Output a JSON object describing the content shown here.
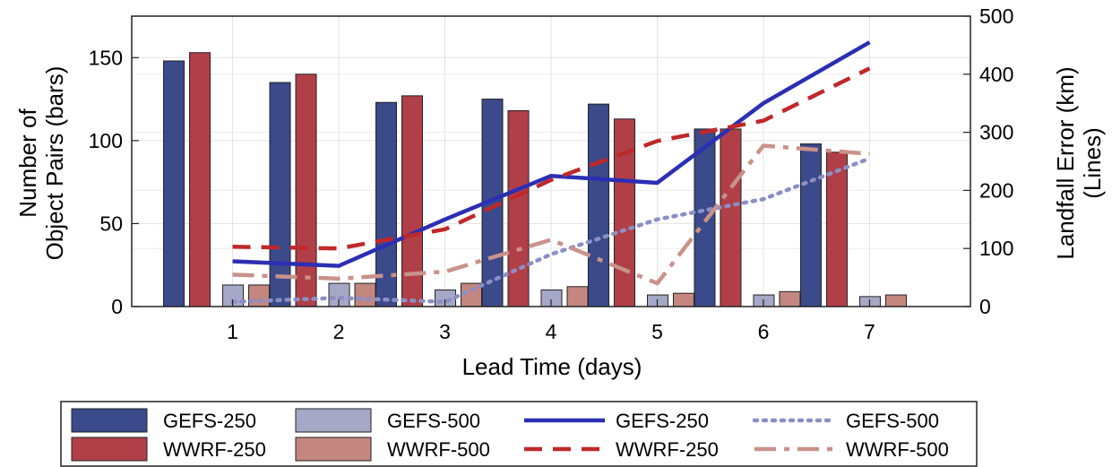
{
  "chart_data": {
    "type": "bar",
    "x": [
      1,
      2,
      3,
      4,
      5,
      6,
      7
    ],
    "xlabel": "Lead Time (days)",
    "ylabel_left": [
      "Number of",
      "Object Pairs (bars)"
    ],
    "ylabel_right": [
      "Landfall Error (km)",
      "(Lines)"
    ],
    "ylim_left": [
      0,
      175
    ],
    "ylim_right": [
      0,
      500
    ],
    "xlim": [
      0.05,
      7.95
    ],
    "yticks_left": [
      0,
      50,
      100,
      150
    ],
    "yticks_right": [
      0,
      100,
      200,
      300,
      400,
      500
    ],
    "grid": true,
    "legend_position": "bottom-outside",
    "bars": [
      {
        "name": "GEFS-250",
        "color": "#3a4a8a",
        "values": [
          148,
          135,
          123,
          125,
          122,
          107,
          98
        ]
      },
      {
        "name": "WWRF-250",
        "color": "#b13f48",
        "values": [
          153,
          140,
          127,
          118,
          113,
          107,
          93
        ]
      },
      {
        "name": "GEFS-500",
        "color": "#a5a8c6",
        "values": [
          13,
          14,
          10,
          10,
          7,
          7,
          6
        ]
      },
      {
        "name": "WWRF-500",
        "color": "#c4877f",
        "values": [
          13,
          14,
          14,
          12,
          8,
          9,
          7
        ]
      }
    ],
    "lines": [
      {
        "name": "GEFS-250",
        "color": "#2b2fb4",
        "style": "solid",
        "values": [
          78,
          70,
          150,
          225,
          213,
          350,
          455
        ]
      },
      {
        "name": "WWRF-250",
        "color": "#c0282a",
        "style": "dashed",
        "values": [
          103,
          100,
          133,
          218,
          285,
          320,
          410
        ]
      },
      {
        "name": "GEFS-500",
        "color": "#8c8fc4",
        "style": "dotted",
        "values": [
          8,
          15,
          8,
          90,
          150,
          185,
          255
        ]
      },
      {
        "name": "WWRF-500",
        "color": "#c9928a",
        "style": "dashdot",
        "values": [
          55,
          48,
          60,
          115,
          40,
          277,
          263
        ]
      }
    ]
  },
  "legend": {
    "items": [
      {
        "label": "GEFS-250",
        "kind": "bar",
        "color": "#3a4a8a"
      },
      {
        "label": "GEFS-500",
        "kind": "bar",
        "color": "#a5a8c6"
      },
      {
        "label": "GEFS-250",
        "kind": "line",
        "color": "#2b2fb4",
        "style": "solid"
      },
      {
        "label": "GEFS-500",
        "kind": "line",
        "color": "#8c8fc4",
        "style": "dotted"
      },
      {
        "label": "WWRF-250",
        "kind": "bar",
        "color": "#b13f48"
      },
      {
        "label": "WWRF-500",
        "kind": "bar",
        "color": "#c4877f"
      },
      {
        "label": "WWRF-250",
        "kind": "line",
        "color": "#c0282a",
        "style": "dashed"
      },
      {
        "label": "WWRF-500",
        "kind": "line",
        "color": "#c9928a",
        "style": "dashdot"
      }
    ]
  }
}
